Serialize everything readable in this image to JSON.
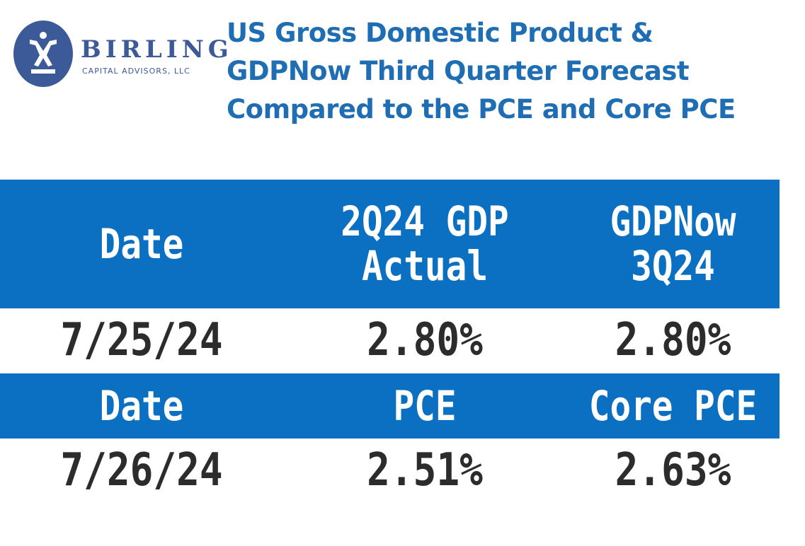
{
  "logo": {
    "name": "BIRLING",
    "subtitle": "CAPITAL ADVISORS, LLC"
  },
  "title": {
    "lines": [
      "US Gross Domestic Product &",
      "GDPNow Third Quarter Forecast",
      "Compared to the PCE and Core PCE"
    ]
  },
  "table": {
    "section1": {
      "headers": [
        "Date",
        "2Q24 GDP Actual",
        "GDPNow 3Q24"
      ],
      "row": [
        "7/25/24",
        "2.80%",
        "2.80%"
      ]
    },
    "section2": {
      "headers": [
        "Date",
        "PCE",
        "Core PCE"
      ],
      "row": [
        "7/26/24",
        "2.51%",
        "2.63%"
      ]
    }
  },
  "colors": {
    "header_bg": "#0b70c1",
    "title": "#1f6eb4",
    "logo": "#3d5a98",
    "data_text": "#2c2c2c"
  }
}
